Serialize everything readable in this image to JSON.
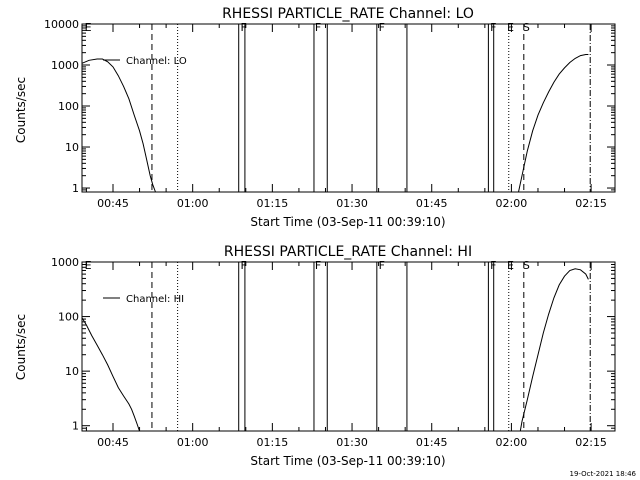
{
  "chart_data": [
    {
      "type": "line",
      "title": "RHESSI PARTICLE_RATE Channel: LO",
      "xlabel": "Start Time (03-Sep-11 00:39:10)",
      "ylabel": "Counts/sec",
      "yscale": "log",
      "xlim": [
        "00:39:10",
        "02:19:30"
      ],
      "ylim": [
        0.8,
        10000
      ],
      "x_tick_labels": [
        "00:45",
        "01:00",
        "01:15",
        "01:30",
        "01:45",
        "02:00",
        "02:15"
      ],
      "y_tick_labels": [
        "1",
        "10",
        "100",
        "1000",
        "10000"
      ],
      "legend": {
        "entries": [
          "Channel: LO"
        ],
        "position": "top-left"
      },
      "series": [
        {
          "name": "Channel: LO",
          "segments": [
            {
              "x": [
                "00:39:10",
                "00:40:30",
                "00:42:00",
                "00:43:00",
                "00:44:00",
                "00:45:00",
                "00:46:00",
                "00:47:00",
                "00:48:00",
                "00:49:00",
                "00:50:00",
                "00:50:40",
                "00:51:20",
                "00:52:00",
                "00:52:30",
                "00:53:00"
              ],
              "y": [
                1100,
                1300,
                1400,
                1400,
                1200,
                900,
                550,
                300,
                150,
                60,
                25,
                12,
                5,
                2,
                1.2,
                0.8
              ]
            },
            {
              "x": [
                "02:01:20",
                "02:02:00",
                "02:03:00",
                "02:04:00",
                "02:05:00",
                "02:06:00",
                "02:07:00",
                "02:08:00",
                "02:09:00",
                "02:10:00",
                "02:11:00",
                "02:12:00",
                "02:13:00",
                "02:14:00",
                "02:14:30"
              ],
              "y": [
                0.8,
                2,
                8,
                25,
                60,
                120,
                220,
                380,
                600,
                850,
                1150,
                1450,
                1700,
                1800,
                1800
              ]
            }
          ]
        }
      ],
      "annotations": [
        {
          "label": "E",
          "x": "00:39:40"
        },
        {
          "label": "F",
          "x": "01:09:00"
        },
        {
          "label": "F",
          "x": "01:23:00"
        },
        {
          "label": "F",
          "x": "01:35:00"
        },
        {
          "label": "F",
          "x": "01:56:00"
        },
        {
          "label": "E",
          "x": "01:59:10"
        },
        {
          "label": "S",
          "x": "02:02:10"
        }
      ],
      "vertical_lines": [
        {
          "x": "00:52:20",
          "style": "dashed"
        },
        {
          "x": "00:57:10",
          "style": "dotted"
        },
        {
          "x": "02:02:20",
          "style": "dashed"
        },
        {
          "x": "01:59:30",
          "style": "dotted"
        },
        {
          "x": "02:14:50",
          "style": "dashdot"
        }
      ],
      "bars": [
        {
          "from": "01:08:40",
          "to": "01:09:50"
        },
        {
          "from": "01:22:50",
          "to": "01:25:20"
        },
        {
          "from": "01:34:40",
          "to": "01:40:20"
        },
        {
          "from": "01:55:40",
          "to": "01:56:40"
        }
      ]
    },
    {
      "type": "line",
      "title": "RHESSI PARTICLE_RATE Channel: HI",
      "xlabel": "Start Time (03-Sep-11 00:39:10)",
      "ylabel": "Counts/sec",
      "yscale": "log",
      "xlim": [
        "00:39:10",
        "02:19:30"
      ],
      "ylim": [
        0.8,
        1000
      ],
      "x_tick_labels": [
        "00:45",
        "01:00",
        "01:15",
        "01:30",
        "01:45",
        "02:00",
        "02:15"
      ],
      "y_tick_labels": [
        "1",
        "10",
        "100",
        "1000"
      ],
      "legend": {
        "entries": [
          "Channel: HI"
        ],
        "position": "top-left"
      },
      "series": [
        {
          "name": "Channel: HI",
          "segments": [
            {
              "x": [
                "00:39:10",
                "00:40:00",
                "00:41:00",
                "00:42:00",
                "00:43:00",
                "00:44:00",
                "00:45:00",
                "00:46:00",
                "00:47:00",
                "00:48:00",
                "00:48:30",
                "00:49:00",
                "00:49:30",
                "00:50:00"
              ],
              "y": [
                95,
                70,
                45,
                30,
                20,
                13,
                8,
                5,
                3.5,
                2.5,
                2,
                1.5,
                1.1,
                0.8
              ]
            },
            {
              "x": [
                "02:01:40",
                "02:02:00",
                "02:03:00",
                "02:04:00",
                "02:05:00",
                "02:06:00",
                "02:07:00",
                "02:08:00",
                "02:09:00",
                "02:10:00",
                "02:11:00",
                "02:12:00",
                "02:13:00",
                "02:14:00",
                "02:14:30"
              ],
              "y": [
                0.8,
                1.2,
                3,
                8,
                20,
                50,
                110,
                220,
                380,
                550,
                700,
                750,
                720,
                600,
                480
              ]
            }
          ]
        }
      ],
      "annotations": [
        {
          "label": "E",
          "x": "00:39:40"
        },
        {
          "label": "F",
          "x": "01:09:00"
        },
        {
          "label": "F",
          "x": "01:23:00"
        },
        {
          "label": "F",
          "x": "01:35:00"
        },
        {
          "label": "F",
          "x": "01:56:00"
        },
        {
          "label": "E",
          "x": "01:59:10"
        },
        {
          "label": "S",
          "x": "02:02:10"
        }
      ],
      "vertical_lines": [
        {
          "x": "00:52:20",
          "style": "dashed"
        },
        {
          "x": "00:57:10",
          "style": "dotted"
        },
        {
          "x": "02:02:20",
          "style": "dashed"
        },
        {
          "x": "01:59:30",
          "style": "dotted"
        },
        {
          "x": "02:14:50",
          "style": "dashdot"
        }
      ],
      "bars": [
        {
          "from": "01:08:40",
          "to": "01:09:50"
        },
        {
          "from": "01:22:50",
          "to": "01:25:20"
        },
        {
          "from": "01:34:40",
          "to": "01:40:20"
        },
        {
          "from": "01:55:40",
          "to": "01:56:40"
        }
      ]
    }
  ],
  "footer": {
    "timestamp": "19-Oct-2021 18:46"
  }
}
